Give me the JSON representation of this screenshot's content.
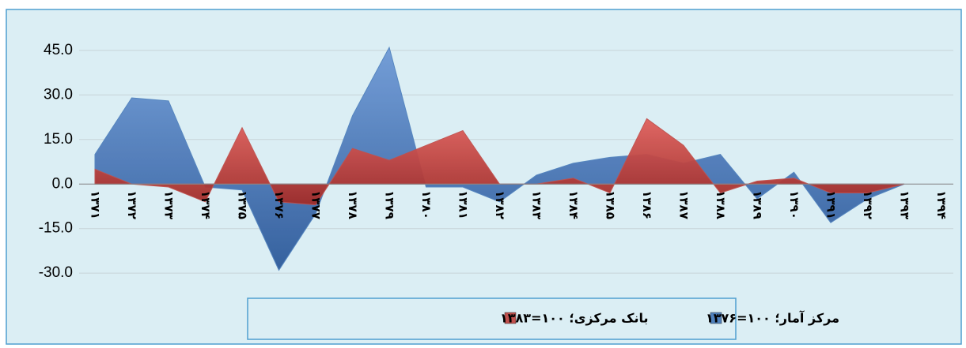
{
  "chart_data": {
    "type": "area",
    "categories": [
      "۱۳۷۱",
      "۱۳۷۲",
      "۱۳۷۳",
      "۱۳۷۴",
      "۱۳۷۵",
      "۱۳۷۶",
      "۱۳۷۷",
      "۱۳۷۸",
      "۱۳۷۹",
      "۱۳۸۰",
      "۱۳۸۱",
      "۱۳۸۲",
      "۱۳۸۳",
      "۱۳۸۴",
      "۱۳۸۵",
      "۱۳۸۶",
      "۱۳۸۷",
      "۱۳۸۸",
      "۱۳۸۹",
      "۱۳۹۰",
      "۱۳۹۱",
      "۱۳۹۲",
      "۱۳۹۳",
      "۱۳۹۴"
    ],
    "series": [
      {
        "name": "مرکز آمار؛ ۱۰۰=۱۳۷۶",
        "color": "#4f81bd",
        "values": [
          10,
          29,
          28,
          -1,
          -2,
          -29,
          -10,
          23,
          46,
          -1,
          -1,
          -6,
          3,
          7,
          9,
          10,
          7,
          10,
          -5,
          4,
          -13,
          -5,
          0,
          null
        ]
      },
      {
        "name": "بانک مرکزی؛ ۱۰۰=۱۳۸۳",
        "color": "#c0504d",
        "values": [
          5,
          0,
          -1,
          -6,
          19,
          -6,
          -7,
          12,
          8,
          13,
          18,
          0,
          0,
          2,
          -3,
          22,
          13,
          -3,
          1,
          2,
          -3,
          -3,
          0,
          null
        ]
      }
    ],
    "ylim": [
      -35,
      50
    ],
    "yticks": [
      {
        "value": -30,
        "label": "-30.0"
      },
      {
        "value": -15,
        "label": "-15.0"
      },
      {
        "value": 0,
        "label": "0.0"
      },
      {
        "value": 15,
        "label": "15.0"
      },
      {
        "value": 30,
        "label": "30.0"
      },
      {
        "value": 45,
        "label": "45.0"
      }
    ],
    "grid": true,
    "legend": "bottom"
  }
}
